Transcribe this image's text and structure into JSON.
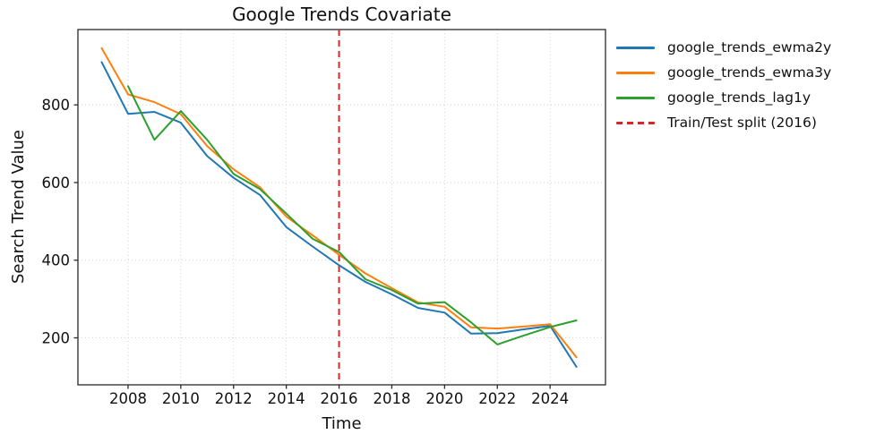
{
  "chart_data": {
    "type": "line",
    "title": "Google Trends Covariate",
    "xlabel": "Time",
    "ylabel": "Search Trend Value",
    "x": [
      2007,
      2008,
      2009,
      2010,
      2011,
      2012,
      2013,
      2014,
      2015,
      2016,
      2017,
      2018,
      2019,
      2020,
      2021,
      2022,
      2023,
      2024,
      2025
    ],
    "series": [
      {
        "name": "google_trends_ewma2y",
        "color": "#1f77b4",
        "style": "solid",
        "values": [
          910,
          777,
          782,
          754,
          668,
          612,
          568,
          485,
          435,
          387,
          344,
          312,
          277,
          265,
          211,
          212,
          222,
          231,
          125
        ]
      },
      {
        "name": "google_trends_ewma3y",
        "color": "#ff7f0e",
        "style": "solid",
        "values": [
          946,
          827,
          807,
          776,
          694,
          634,
          588,
          512,
          464,
          414,
          366,
          328,
          291,
          280,
          227,
          224,
          229,
          235,
          150
        ]
      },
      {
        "name": "google_trends_lag1y",
        "color": "#2ca02c",
        "style": "solid",
        "values": [
          null,
          848,
          710,
          784,
          710,
          622,
          583,
          520,
          455,
          421,
          351,
          323,
          288,
          292,
          240,
          183,
          206,
          228,
          245
        ]
      }
    ],
    "vline": {
      "x": 2016,
      "label": "Train/Test split (2016)",
      "color": "#d62728",
      "style": "dashed"
    },
    "x_ticks": [
      2008,
      2010,
      2012,
      2014,
      2016,
      2018,
      2020,
      2022,
      2024
    ],
    "y_ticks": [
      200,
      400,
      600,
      800
    ],
    "xlim": [
      2006.1,
      2026.1
    ],
    "ylim": [
      79,
      994
    ],
    "grid": true,
    "legend_position": "outside-right"
  },
  "colors": {
    "grid": "#d2d2d2",
    "spine": "#2a2a2a",
    "tick": "#2a2a2a",
    "text": "#111111"
  }
}
